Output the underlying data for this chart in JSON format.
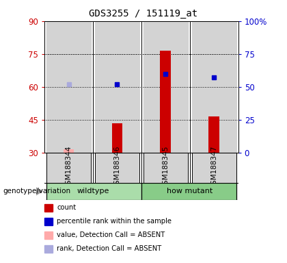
{
  "title": "GDS3255 / 151119_at",
  "samples": [
    "GSM188344",
    "GSM188346",
    "GSM188345",
    "GSM188347"
  ],
  "x_positions": [
    1,
    2,
    3,
    4
  ],
  "ylim_left": [
    30,
    90
  ],
  "ylim_right": [
    0,
    100
  ],
  "yticks_left": [
    30,
    45,
    60,
    75,
    90
  ],
  "yticks_right": [
    0,
    25,
    50,
    75,
    100
  ],
  "left_tick_color": "#cc0000",
  "right_tick_color": "#0000cc",
  "count_values": [
    31.5,
    43.5,
    76.5,
    46.5
  ],
  "count_colors": [
    "#ffaaaa",
    "#cc0000",
    "#cc0000",
    "#cc0000"
  ],
  "percentile_values": [
    52,
    52,
    60,
    57
  ],
  "percentile_colors": [
    "#aaaadd",
    "#0000cc",
    "#0000cc",
    "#0000cc"
  ],
  "bar_width": 0.22,
  "sample_area_bg": "#d3d3d3",
  "wildtype_color": "#aaddaa",
  "mutant_color": "#88cc88",
  "legend_items": [
    {
      "label": "count",
      "color": "#cc0000"
    },
    {
      "label": "percentile rank within the sample",
      "color": "#0000cc"
    },
    {
      "label": "value, Detection Call = ABSENT",
      "color": "#ffaaaa"
    },
    {
      "label": "rank, Detection Call = ABSENT",
      "color": "#aaaadd"
    }
  ]
}
